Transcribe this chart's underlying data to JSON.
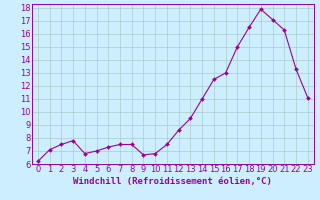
{
  "all_x": [
    0,
    1,
    2,
    3,
    4,
    5,
    6,
    7,
    8,
    9,
    10,
    11,
    12,
    13,
    14,
    15,
    16,
    17,
    18,
    19,
    20,
    21,
    22,
    23
  ],
  "all_y": [
    6.2,
    7.1,
    7.5,
    7.8,
    6.8,
    7.0,
    7.3,
    7.5,
    7.5,
    6.7,
    6.8,
    7.5,
    8.6,
    9.5,
    11.0,
    12.5,
    13.0,
    15.0,
    16.5,
    17.9,
    17.1,
    16.3,
    13.3,
    11.1
  ],
  "line_color": "#990099",
  "marker": "D",
  "marker_size": 2,
  "bg_color": "#cceeff",
  "grid_color": "#aacccc",
  "xlabel": "Windchill (Refroidissement éolien,°C)",
  "ylim": [
    6,
    18
  ],
  "xlim": [
    -0.5,
    23.5
  ],
  "yticks": [
    6,
    7,
    8,
    9,
    10,
    11,
    12,
    13,
    14,
    15,
    16,
    17,
    18
  ],
  "xtick_labels": [
    "0",
    "1",
    "2",
    "3",
    "4",
    "5",
    "6",
    "7",
    "8",
    "9",
    "10",
    "11",
    "12",
    "13",
    "14",
    "15",
    "16",
    "17",
    "18",
    "19",
    "20",
    "21",
    "22",
    "23"
  ],
  "label_fontsize": 6.5,
  "tick_fontsize": 6
}
